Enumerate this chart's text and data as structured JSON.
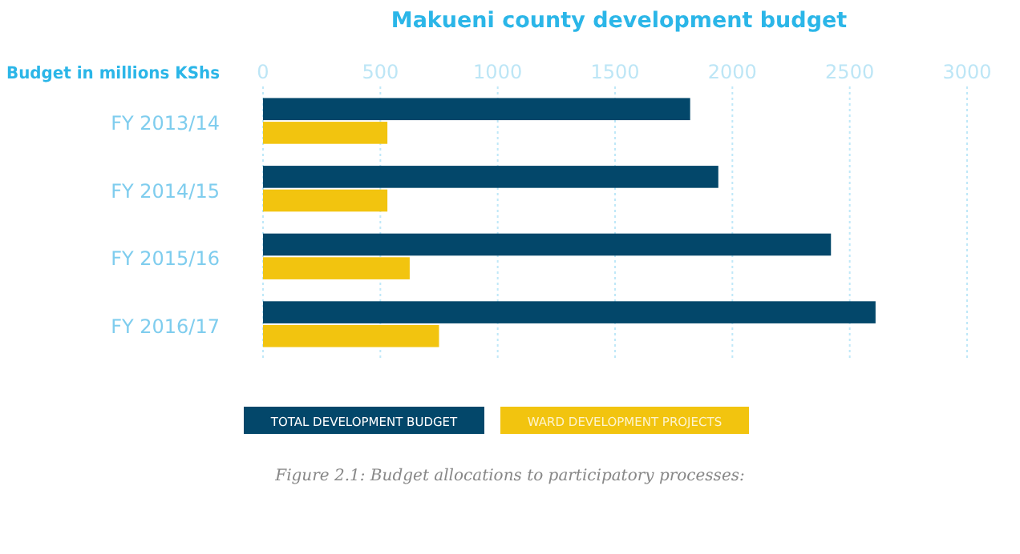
{
  "chart_data": {
    "type": "bar",
    "orientation": "horizontal",
    "title": "Makueni county development budget",
    "xlabel": "Budget in millions KShs",
    "categories": [
      "FY 2013/14",
      "FY 2014/15",
      "FY 2015/16",
      "FY 2016/17"
    ],
    "series": [
      {
        "name": "TOTAL DEVELOPMENT BUDGET",
        "color": "#03476a",
        "values": [
          1820,
          1940,
          2420,
          2610
        ]
      },
      {
        "name": "WARD DEVELOPMENT PROJECTS",
        "color": "#f2c40f",
        "values": [
          530,
          530,
          625,
          750
        ]
      }
    ],
    "xlim": [
      0,
      3000
    ],
    "xticks": [
      0,
      500,
      1000,
      1500,
      2000,
      2500,
      3000
    ],
    "grid": "x",
    "legend": "bottom",
    "annotations": [
      "Figure 2.1: Budget allocations to participatory processes:"
    ]
  }
}
